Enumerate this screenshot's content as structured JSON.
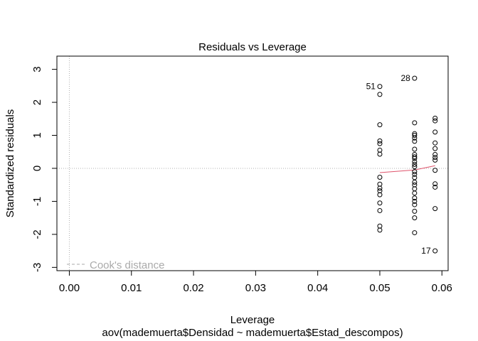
{
  "chart_data": {
    "type": "scatter",
    "title": "Residuals vs Leverage",
    "xlabel": "Leverage",
    "xlabel_sub": "aov(mademuerta$Densidad ~ mademuerta$Estad_descompos)",
    "ylabel": "Standardized residuals",
    "xlim": [
      -0.002,
      0.061
    ],
    "ylim": [
      -3.1,
      3.4
    ],
    "x_ticks": [
      "0.00",
      "0.01",
      "0.02",
      "0.03",
      "0.04",
      "0.05",
      "0.06"
    ],
    "x_tick_values": [
      0.0,
      0.01,
      0.02,
      0.03,
      0.04,
      0.05,
      0.06
    ],
    "y_ticks": [
      "-3",
      "-2",
      "-1",
      "0",
      "1",
      "2",
      "3"
    ],
    "y_tick_values": [
      -3,
      -2,
      -1,
      0,
      1,
      2,
      3
    ],
    "reference_lines": {
      "h": 0,
      "v": 0,
      "style": "dotted",
      "color": "#b0b0b0"
    },
    "legend": {
      "label": "Cook's distance",
      "position": "bottom-left",
      "color": "#aaaaaa",
      "line_style": "dashed"
    },
    "point_labels": [
      {
        "label": "51",
        "x": 0.05,
        "y": 2.48
      },
      {
        "label": "28",
        "x": 0.0556,
        "y": 2.73
      },
      {
        "label": "17",
        "x": 0.0589,
        "y": -2.5
      }
    ],
    "series": [
      {
        "color": "#000000",
        "points": [
          [
            0.05,
            2.48
          ],
          [
            0.05,
            2.24
          ],
          [
            0.05,
            1.32
          ],
          [
            0.05,
            0.83
          ],
          [
            0.05,
            0.75
          ],
          [
            0.05,
            0.55
          ],
          [
            0.05,
            0.43
          ],
          [
            0.05,
            -0.27
          ],
          [
            0.05,
            -0.48
          ],
          [
            0.05,
            -0.6
          ],
          [
            0.05,
            -0.68
          ],
          [
            0.05,
            -0.8
          ],
          [
            0.05,
            -1.05
          ],
          [
            0.05,
            -1.28
          ],
          [
            0.05,
            -1.75
          ],
          [
            0.05,
            -1.87
          ],
          [
            0.0556,
            2.73
          ],
          [
            0.0556,
            1.38
          ],
          [
            0.0556,
            1.05
          ],
          [
            0.0556,
            1.0
          ],
          [
            0.0556,
            0.92
          ],
          [
            0.0556,
            0.82
          ],
          [
            0.0556,
            0.58
          ],
          [
            0.0556,
            0.42
          ],
          [
            0.0556,
            0.35
          ],
          [
            0.0556,
            0.3
          ],
          [
            0.0556,
            0.2
          ],
          [
            0.0556,
            0.12
          ],
          [
            0.0556,
            0.05
          ],
          [
            0.0556,
            -0.1
          ],
          [
            0.0556,
            -0.18
          ],
          [
            0.0556,
            -0.28
          ],
          [
            0.0556,
            -0.42
          ],
          [
            0.0556,
            -0.5
          ],
          [
            0.0556,
            -0.62
          ],
          [
            0.0556,
            -0.75
          ],
          [
            0.0556,
            -0.9
          ],
          [
            0.0556,
            -1.0
          ],
          [
            0.0556,
            -1.1
          ],
          [
            0.0556,
            -1.3
          ],
          [
            0.0556,
            -1.5
          ],
          [
            0.0556,
            -1.95
          ],
          [
            0.0589,
            1.52
          ],
          [
            0.0589,
            1.44
          ],
          [
            0.0589,
            1.1
          ],
          [
            0.0589,
            0.77
          ],
          [
            0.0589,
            0.6
          ],
          [
            0.0589,
            0.42
          ],
          [
            0.0589,
            0.33
          ],
          [
            0.0589,
            0.25
          ],
          [
            0.0589,
            -0.06
          ],
          [
            0.0589,
            -0.47
          ],
          [
            0.0589,
            -0.57
          ],
          [
            0.0589,
            -1.22
          ],
          [
            0.0589,
            -2.5
          ]
        ]
      },
      {
        "name": "smooth",
        "color": "#df536b",
        "kind": "line",
        "points": [
          [
            0.05,
            -0.13
          ],
          [
            0.0556,
            -0.05
          ],
          [
            0.0589,
            0.08
          ]
        ]
      }
    ]
  }
}
